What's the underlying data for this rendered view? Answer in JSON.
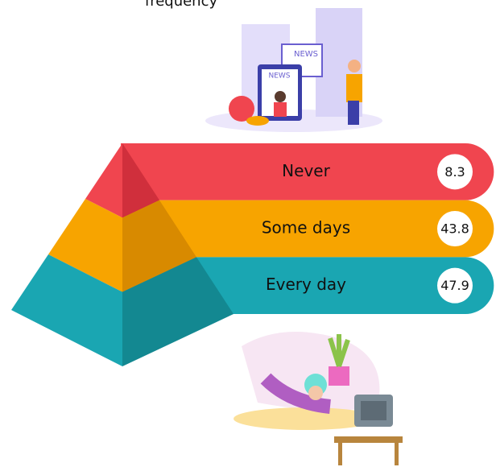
{
  "chart_data": {
    "type": "pyramid",
    "title": "frequency",
    "categories": [
      "Never",
      "Some days",
      "Every day"
    ],
    "values": [
      8.3,
      43.8,
      47.9
    ],
    "colors": [
      "#f0454f",
      "#f7a400",
      "#1aa6b2"
    ],
    "dark_colors": [
      "#d02f3c",
      "#d88a00",
      "#138891"
    ]
  }
}
